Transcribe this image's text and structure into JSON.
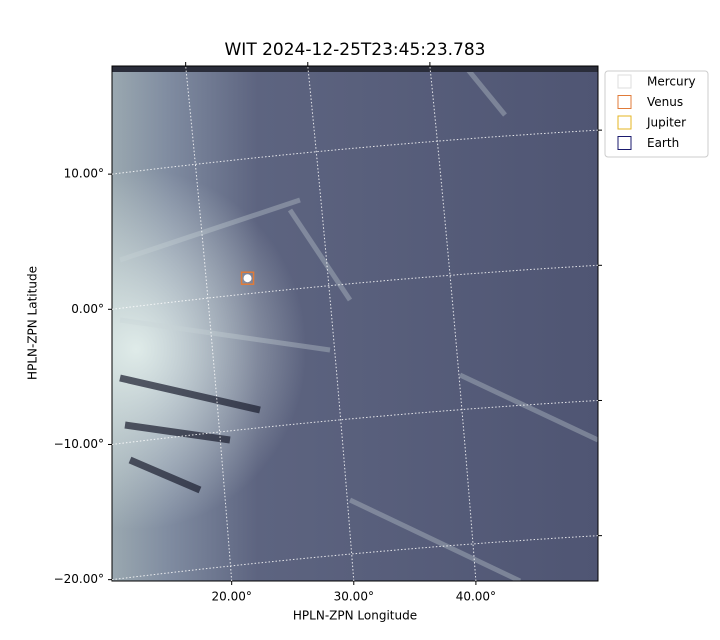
{
  "chart_data": {
    "type": "image",
    "title": "WIT 2024-12-25T23:45:23.783",
    "x_label": "HPLN-ZPN Longitude",
    "y_label": "HPLN-ZPN Latitude",
    "xlim": [
      10.2,
      50.0
    ],
    "ylim": [
      -20.1,
      18.0
    ],
    "xticks": [
      {
        "value": 20,
        "label": "20.00°"
      },
      {
        "value": 30,
        "label": "30.00°"
      },
      {
        "value": 40,
        "label": "40.00°"
      }
    ],
    "yticks": [
      {
        "value": -20,
        "label": "−20.00°"
      },
      {
        "value": -10,
        "label": "−10.00°"
      },
      {
        "value": 0,
        "label": "0.00°"
      },
      {
        "value": 10,
        "label": "10.00°"
      }
    ],
    "grid": true,
    "legend": "upper right",
    "series": [
      {
        "name": "Mercury",
        "color": "#dddddd",
        "x": [],
        "values": []
      },
      {
        "name": "Venus",
        "color": "#e07b39",
        "x": [
          21.3
        ],
        "values": [
          2.3
        ]
      },
      {
        "name": "Jupiter",
        "color": "#e6b422",
        "x": [],
        "values": []
      },
      {
        "name": "Earth",
        "color": "#1a1a6e",
        "x": [],
        "values": []
      }
    ]
  }
}
